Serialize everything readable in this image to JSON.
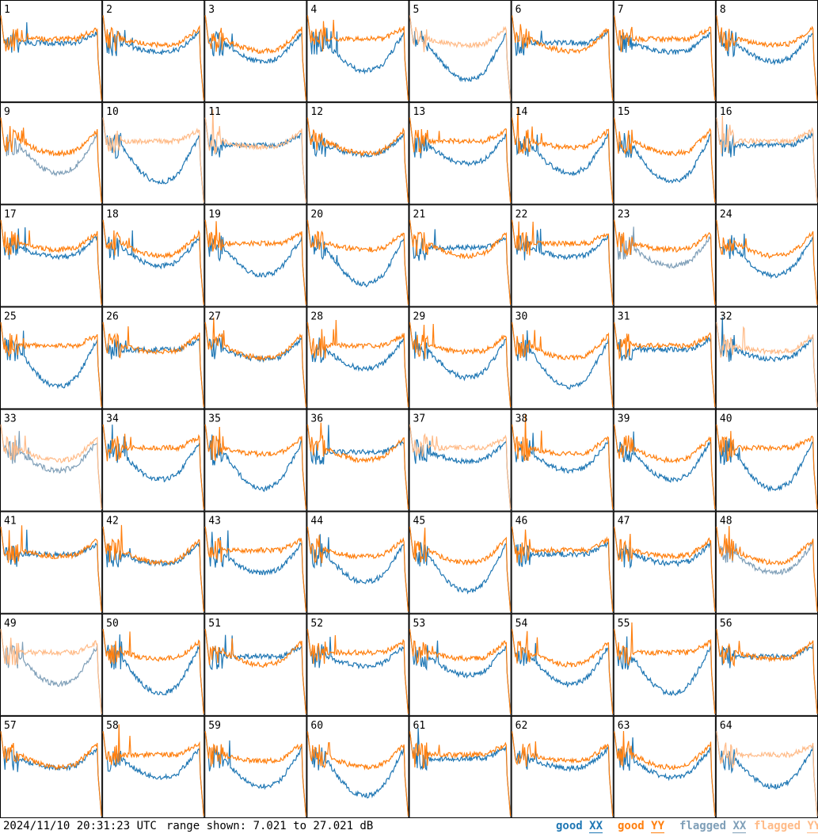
{
  "chart_data": {
    "type": "line",
    "layout": "small-multiples 8x8",
    "panels": [
      {
        "id": "1",
        "xx": "good",
        "yy": "good"
      },
      {
        "id": "2",
        "xx": "good",
        "yy": "good"
      },
      {
        "id": "3",
        "xx": "good",
        "yy": "good"
      },
      {
        "id": "4",
        "xx": "good",
        "yy": "good"
      },
      {
        "id": "5",
        "xx": "good",
        "yy": "flagged"
      },
      {
        "id": "6",
        "xx": "good",
        "yy": "good"
      },
      {
        "id": "7",
        "xx": "good",
        "yy": "good"
      },
      {
        "id": "8",
        "xx": "good",
        "yy": "good"
      },
      {
        "id": "9",
        "xx": "flagged",
        "yy": "good"
      },
      {
        "id": "10",
        "xx": "good",
        "yy": "flagged"
      },
      {
        "id": "11",
        "xx": "good",
        "yy": "flagged"
      },
      {
        "id": "12",
        "xx": "good",
        "yy": "good"
      },
      {
        "id": "13",
        "xx": "good",
        "yy": "good"
      },
      {
        "id": "14",
        "xx": "good",
        "yy": "good"
      },
      {
        "id": "15",
        "xx": "good",
        "yy": "good"
      },
      {
        "id": "16",
        "xx": "good",
        "yy": "flagged"
      },
      {
        "id": "17",
        "xx": "good",
        "yy": "good"
      },
      {
        "id": "18",
        "xx": "good",
        "yy": "good"
      },
      {
        "id": "19",
        "xx": "good",
        "yy": "good"
      },
      {
        "id": "20",
        "xx": "good",
        "yy": "good"
      },
      {
        "id": "21",
        "xx": "good",
        "yy": "good"
      },
      {
        "id": "22",
        "xx": "good",
        "yy": "good"
      },
      {
        "id": "23",
        "xx": "flagged",
        "yy": "good"
      },
      {
        "id": "24",
        "xx": "good",
        "yy": "good"
      },
      {
        "id": "25",
        "xx": "good",
        "yy": "good"
      },
      {
        "id": "26",
        "xx": "good",
        "yy": "good"
      },
      {
        "id": "27",
        "xx": "good",
        "yy": "good"
      },
      {
        "id": "28",
        "xx": "good",
        "yy": "good"
      },
      {
        "id": "29",
        "xx": "good",
        "yy": "good"
      },
      {
        "id": "30",
        "xx": "good",
        "yy": "good"
      },
      {
        "id": "31",
        "xx": "good",
        "yy": "good"
      },
      {
        "id": "32",
        "xx": "good",
        "yy": "flagged"
      },
      {
        "id": "33",
        "xx": "flagged",
        "yy": "flagged"
      },
      {
        "id": "34",
        "xx": "good",
        "yy": "good"
      },
      {
        "id": "35",
        "xx": "good",
        "yy": "good"
      },
      {
        "id": "36",
        "xx": "good",
        "yy": "good"
      },
      {
        "id": "37",
        "xx": "good",
        "yy": "flagged"
      },
      {
        "id": "38",
        "xx": "good",
        "yy": "good"
      },
      {
        "id": "39",
        "xx": "good",
        "yy": "good"
      },
      {
        "id": "40",
        "xx": "good",
        "yy": "good"
      },
      {
        "id": "41",
        "xx": "good",
        "yy": "good"
      },
      {
        "id": "42",
        "xx": "good",
        "yy": "good"
      },
      {
        "id": "43",
        "xx": "good",
        "yy": "good"
      },
      {
        "id": "44",
        "xx": "good",
        "yy": "good"
      },
      {
        "id": "45",
        "xx": "good",
        "yy": "good"
      },
      {
        "id": "46",
        "xx": "good",
        "yy": "good"
      },
      {
        "id": "47",
        "xx": "good",
        "yy": "good"
      },
      {
        "id": "48",
        "xx": "flagged",
        "yy": "good"
      },
      {
        "id": "49",
        "xx": "flagged",
        "yy": "flagged"
      },
      {
        "id": "50",
        "xx": "good",
        "yy": "good"
      },
      {
        "id": "51",
        "xx": "good",
        "yy": "good"
      },
      {
        "id": "52",
        "xx": "good",
        "yy": "good"
      },
      {
        "id": "53",
        "xx": "good",
        "yy": "good"
      },
      {
        "id": "54",
        "xx": "good",
        "yy": "good"
      },
      {
        "id": "55",
        "xx": "good",
        "yy": "good"
      },
      {
        "id": "56",
        "xx": "good",
        "yy": "good"
      },
      {
        "id": "57",
        "xx": "good",
        "yy": "good"
      },
      {
        "id": "58",
        "xx": "good",
        "yy": "good"
      },
      {
        "id": "59",
        "xx": "good",
        "yy": "good"
      },
      {
        "id": "60",
        "xx": "good",
        "yy": "good"
      },
      {
        "id": "61",
        "xx": "good",
        "yy": "good"
      },
      {
        "id": "62",
        "xx": "good",
        "yy": "good"
      },
      {
        "id": "63",
        "xx": "good",
        "yy": "good"
      },
      {
        "id": "64",
        "xx": "good",
        "yy": "flagged"
      }
    ],
    "ylim": [
      7.021,
      27.021
    ],
    "legend": [
      "good XX",
      "good YY",
      "flagged XX",
      "flagged YY"
    ],
    "legend_placement": "bottom-right",
    "colors": {
      "good_xx": "#1f77b4",
      "good_yy": "#ff7f0e",
      "flagged_xx": "#7f9fb8",
      "flagged_yy": "#ffbb88"
    }
  },
  "footer": {
    "timestamp": "2024/11/10 20:31:23 UTC",
    "range": "range shown: 7.021 to 27.021 dB",
    "legend_good_prefix": "good ",
    "legend_flagged_prefix": "flagged ",
    "legend_xx": "XX",
    "legend_yy": "YY"
  }
}
